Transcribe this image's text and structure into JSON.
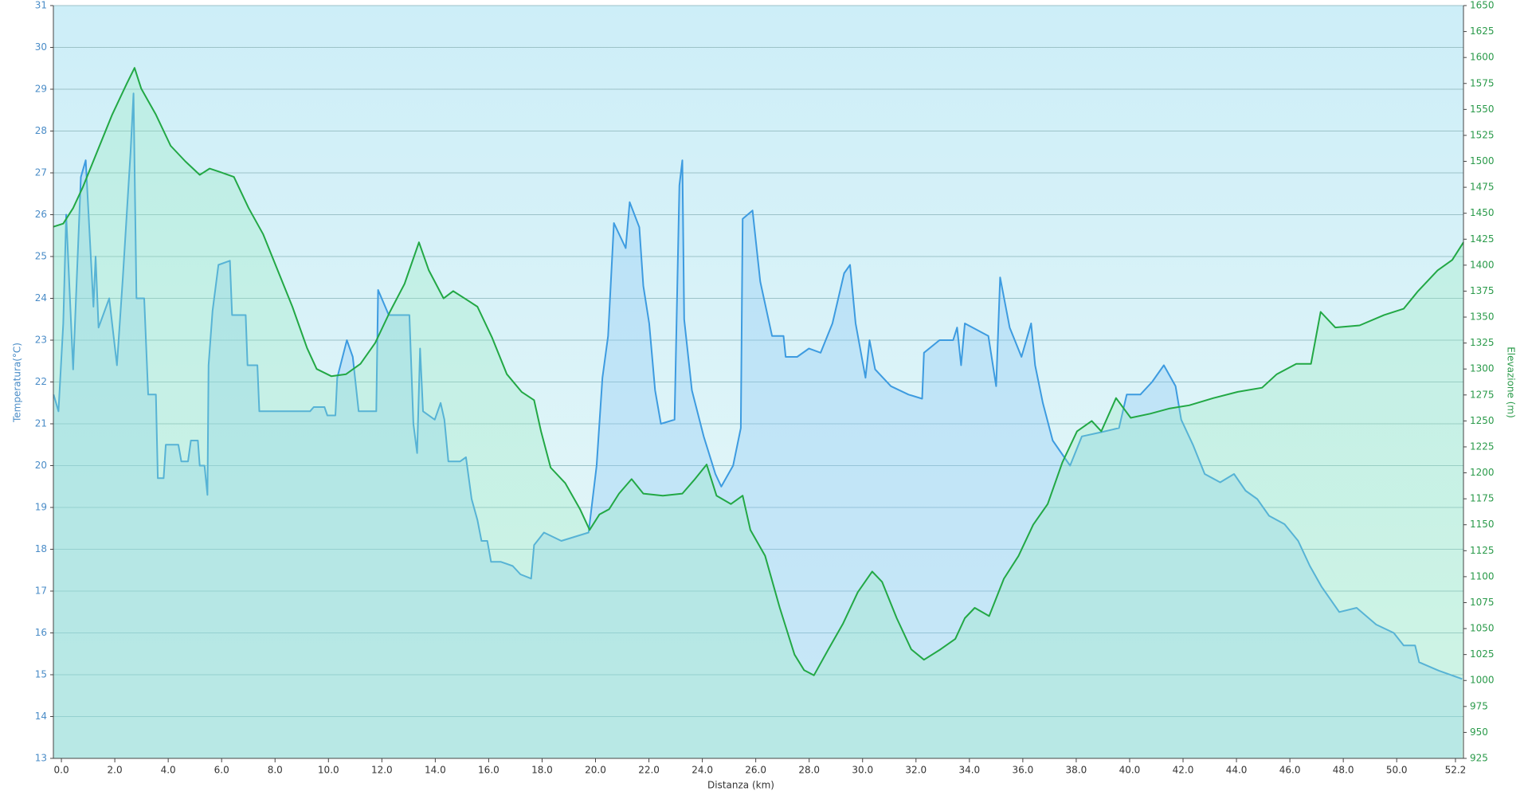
{
  "chart_data": {
    "type": "line",
    "xlabel": "Distanza  (km)",
    "ylabel": "Temperatura(°C)",
    "y2label": "Elevazione (m)",
    "xlim": [
      -0.3,
      52.5
    ],
    "xticks": [
      {
        "value": 0,
        "label": "0.0"
      },
      {
        "value": 2,
        "label": "2.0"
      },
      {
        "value": 4,
        "label": "4.0"
      },
      {
        "value": 6,
        "label": "6.0"
      },
      {
        "value": 8,
        "label": "8.0"
      },
      {
        "value": 10,
        "label": "10.0"
      },
      {
        "value": 12,
        "label": "12.0"
      },
      {
        "value": 14,
        "label": "14.0"
      },
      {
        "value": 16,
        "label": "16.0"
      },
      {
        "value": 18,
        "label": "18.0"
      },
      {
        "value": 20,
        "label": "20.0"
      },
      {
        "value": 22,
        "label": "22.0"
      },
      {
        "value": 24,
        "label": "24.0"
      },
      {
        "value": 26,
        "label": "26.0"
      },
      {
        "value": 28,
        "label": "28.0"
      },
      {
        "value": 30,
        "label": "30.0"
      },
      {
        "value": 32,
        "label": "32.0"
      },
      {
        "value": 34,
        "label": "34.0"
      },
      {
        "value": 36,
        "label": "36.0"
      },
      {
        "value": 38,
        "label": "38.0"
      },
      {
        "value": 40,
        "label": "40.0"
      },
      {
        "value": 42,
        "label": "42.0"
      },
      {
        "value": 44,
        "label": "44.0"
      },
      {
        "value": 46,
        "label": "46.0"
      },
      {
        "value": 48,
        "label": "48.0"
      },
      {
        "value": 50,
        "label": "50.0"
      },
      {
        "value": 52.2,
        "label": "52.2"
      }
    ],
    "ylim": [
      13,
      31
    ],
    "yticks": [
      13,
      14,
      15,
      16,
      17,
      18,
      19,
      20,
      21,
      22,
      23,
      24,
      25,
      26,
      27,
      28,
      29,
      30,
      31
    ],
    "y2lim": [
      925,
      1650
    ],
    "y2ticks": [
      925,
      950,
      975,
      1000,
      1025,
      1050,
      1075,
      1100,
      1125,
      1150,
      1175,
      1200,
      1225,
      1250,
      1275,
      1300,
      1325,
      1350,
      1375,
      1400,
      1425,
      1450,
      1475,
      1500,
      1525,
      1550,
      1575,
      1600,
      1625,
      1650
    ],
    "grid": true,
    "series": [
      {
        "color": "#3d9be0",
        "axis": "y",
        "x": [
          -0.29,
          -0.11,
          0.07,
          0.18,
          0.44,
          0.73,
          0.91,
          1.2,
          1.28,
          1.39,
          1.79,
          2.08,
          2.3,
          2.59,
          2.7,
          2.81,
          3.1,
          3.25,
          3.54,
          3.61,
          3.83,
          3.91,
          4.38,
          4.49,
          4.74,
          4.85,
          5.11,
          5.18,
          5.36,
          5.47,
          5.51,
          5.66,
          5.88,
          6.31,
          6.39,
          6.9,
          6.97,
          7.34,
          7.41,
          9.31,
          9.45,
          9.85,
          9.96,
          10.26,
          10.33,
          10.69,
          10.91,
          11.13,
          11.79,
          11.86,
          12.26,
          13.03,
          13.18,
          13.32,
          13.43,
          13.54,
          13.98,
          14.2,
          14.34,
          14.49,
          14.93,
          15.15,
          15.36,
          15.58,
          15.73,
          15.95,
          16.09,
          16.46,
          16.9,
          17.19,
          17.59,
          17.7,
          18.07,
          18.72,
          19.74,
          20.04,
          20.26,
          20.47,
          20.69,
          21.13,
          21.28,
          21.64,
          21.79,
          22.01,
          22.23,
          22.45,
          22.96,
          23.14,
          23.25,
          23.32,
          23.61,
          24.05,
          24.49,
          24.71,
          25.15,
          25.44,
          25.51,
          25.88,
          26.17,
          26.61,
          27.04,
          27.12,
          27.55,
          27.99,
          28.43,
          28.87,
          29.31,
          29.53,
          29.74,
          30.11,
          30.26,
          30.47,
          31.06,
          31.72,
          32.23,
          32.3,
          32.88,
          33.39,
          33.54,
          33.69,
          33.83,
          34.71,
          35.0,
          35.15,
          35.51,
          35.95,
          36.31,
          36.46,
          36.75,
          37.12,
          37.77,
          38.21,
          38.94,
          39.6,
          39.89,
          40.4,
          40.84,
          41.28,
          41.72,
          41.93,
          42.37,
          42.81,
          43.39,
          43.91,
          44.34,
          44.78,
          45.22,
          45.8,
          46.31,
          46.75,
          47.19,
          47.85,
          48.5,
          49.23,
          49.89,
          50.26,
          50.69,
          50.84,
          51.57,
          52.45
        ],
        "values": [
          21.7,
          21.3,
          23.4,
          26.0,
          22.3,
          26.9,
          27.3,
          23.8,
          25.0,
          23.3,
          24.0,
          22.4,
          24.5,
          27.5,
          28.9,
          24.0,
          24.0,
          21.7,
          21.7,
          19.7,
          19.7,
          20.5,
          20.5,
          20.1,
          20.1,
          20.6,
          20.6,
          20.0,
          20.0,
          19.3,
          22.4,
          23.7,
          24.8,
          24.9,
          23.6,
          23.6,
          22.4,
          22.4,
          21.3,
          21.3,
          21.4,
          21.4,
          21.2,
          21.2,
          22.1,
          23.0,
          22.6,
          21.3,
          21.3,
          24.2,
          23.6,
          23.6,
          21.0,
          20.3,
          22.8,
          21.3,
          21.1,
          21.5,
          21.1,
          20.1,
          20.1,
          20.2,
          19.2,
          18.7,
          18.2,
          18.2,
          17.7,
          17.7,
          17.6,
          17.4,
          17.3,
          18.1,
          18.4,
          18.2,
          18.4,
          20.0,
          22.1,
          23.1,
          25.8,
          25.2,
          26.3,
          25.7,
          24.3,
          23.4,
          21.8,
          21.0,
          21.1,
          26.7,
          27.3,
          23.5,
          21.8,
          20.7,
          19.8,
          19.5,
          20.0,
          20.9,
          25.9,
          26.1,
          24.4,
          23.1,
          23.1,
          22.6,
          22.6,
          22.8,
          22.7,
          23.4,
          24.6,
          24.8,
          23.4,
          22.1,
          23.0,
          22.3,
          21.9,
          21.7,
          21.6,
          22.7,
          23.0,
          23.0,
          23.3,
          22.4,
          23.4,
          23.1,
          21.9,
          24.5,
          23.3,
          22.6,
          23.4,
          22.4,
          21.5,
          20.6,
          20.0,
          20.7,
          20.8,
          20.9,
          21.7,
          21.7,
          22.0,
          22.4,
          21.9,
          21.1,
          20.5,
          19.8,
          19.6,
          19.8,
          19.4,
          19.2,
          18.8,
          18.6,
          18.2,
          17.6,
          17.1,
          16.5,
          16.6,
          16.2,
          16.0,
          15.7,
          15.7,
          15.3,
          15.1,
          14.9
        ]
      },
      {
        "color": "#22a845",
        "axis": "y2",
        "x": [
          -0.29,
          0.07,
          0.44,
          0.8,
          1.35,
          1.9,
          2.45,
          2.74,
          2.99,
          3.54,
          4.09,
          4.64,
          5.18,
          5.55,
          5.91,
          6.46,
          7.01,
          7.55,
          8.1,
          8.65,
          9.2,
          9.56,
          10.11,
          10.66,
          11.2,
          11.75,
          12.3,
          12.85,
          13.39,
          13.76,
          14.31,
          14.67,
          15.22,
          15.58,
          16.13,
          16.68,
          17.23,
          17.7,
          17.96,
          18.32,
          18.87,
          19.42,
          19.78,
          20.15,
          20.51,
          20.88,
          21.35,
          21.79,
          22.52,
          23.25,
          23.69,
          24.16,
          24.53,
          25.07,
          25.51,
          25.8,
          26.35,
          26.9,
          27.45,
          27.81,
          28.18,
          28.72,
          29.27,
          29.82,
          30.36,
          30.73,
          31.28,
          31.82,
          32.3,
          32.92,
          33.47,
          33.83,
          34.2,
          34.74,
          35.29,
          35.84,
          36.39,
          36.93,
          37.48,
          38.03,
          38.58,
          38.94,
          39.49,
          40.04,
          40.77,
          41.5,
          42.23,
          43.14,
          44.05,
          44.96,
          45.51,
          46.24,
          46.79,
          47.15,
          47.7,
          48.61,
          49.53,
          50.26,
          50.8,
          51.53,
          52.08,
          52.5
        ],
        "values": [
          1437,
          1440,
          1455,
          1475,
          1510,
          1545,
          1575,
          1590,
          1570,
          1545,
          1515,
          1500,
          1487,
          1493,
          1490,
          1485,
          1455,
          1430,
          1395,
          1360,
          1320,
          1300,
          1293,
          1295,
          1305,
          1325,
          1355,
          1382,
          1422,
          1395,
          1368,
          1375,
          1366,
          1360,
          1330,
          1295,
          1278,
          1270,
          1240,
          1205,
          1190,
          1165,
          1145,
          1160,
          1165,
          1180,
          1194,
          1180,
          1178,
          1180,
          1193,
          1208,
          1178,
          1170,
          1178,
          1145,
          1120,
          1070,
          1025,
          1010,
          1005,
          1030,
          1055,
          1085,
          1105,
          1095,
          1060,
          1030,
          1020,
          1030,
          1040,
          1060,
          1070,
          1062,
          1098,
          1120,
          1150,
          1170,
          1210,
          1240,
          1250,
          1240,
          1272,
          1253,
          1257,
          1262,
          1265,
          1272,
          1278,
          1282,
          1295,
          1305,
          1305,
          1355,
          1340,
          1342,
          1352,
          1358,
          1375,
          1395,
          1405,
          1422
        ]
      }
    ]
  }
}
